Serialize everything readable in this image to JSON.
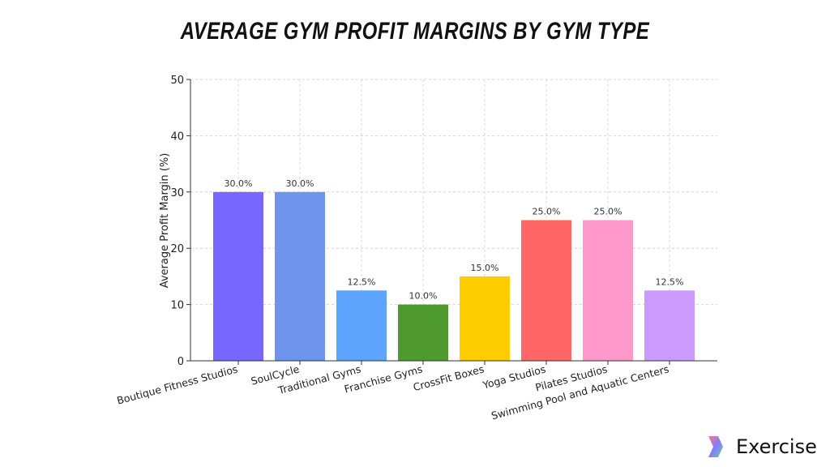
{
  "chart_data": {
    "type": "bar",
    "title": "AVERAGE GYM PROFIT MARGINS BY GYM TYPE",
    "xlabel": "",
    "ylabel": "Average Profit Margin (%)",
    "ylim": [
      0,
      50
    ],
    "yticks": [
      0,
      10,
      20,
      30,
      40,
      50
    ],
    "grid": true,
    "categories": [
      "Boutique Fitness Studios",
      "SoulCycle",
      "Traditional Gyms",
      "Franchise Gyms",
      "CrossFit Boxes",
      "Yoga Studios",
      "Pilates Studios",
      "Swimming Pool and Aquatic Centers"
    ],
    "values": [
      30.0,
      30.0,
      12.5,
      10.0,
      15.0,
      25.0,
      25.0,
      12.5
    ],
    "data_labels": [
      "30.0%",
      "30.0%",
      "12.5%",
      "10.0%",
      "15.0%",
      "25.0%",
      "25.0%",
      "12.5%"
    ],
    "colors": [
      "#7766ff",
      "#6e95ee",
      "#5ca4ff",
      "#4e9a2e",
      "#ffcc00",
      "#ff6666",
      "#ff99cc",
      "#cc99ff"
    ]
  },
  "brand": {
    "name": "Exercise"
  }
}
